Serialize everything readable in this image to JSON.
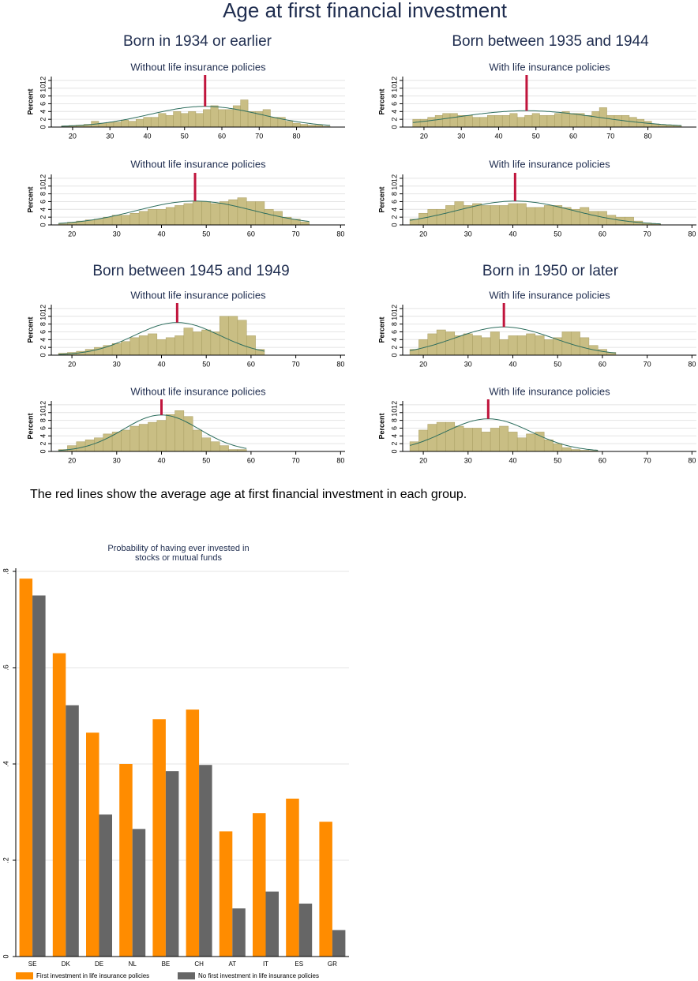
{
  "title": "Age at first financial investment",
  "groups": [
    "Born in 1934 or earlier",
    "Born between 1935 and 1944",
    "Born between 1945 and 1949",
    "Born in 1950 or later"
  ],
  "note": "The red lines show the average age at first financial investment in each group.",
  "chart_data": [
    {
      "type": "histogram",
      "title": "Without life insurance policies",
      "ylabel": "Percent",
      "color": "#c9be84",
      "mean_color": "#c0143c",
      "curve_color": "#2e6e5e",
      "bins": [
        17,
        19,
        21,
        23,
        25,
        27,
        29,
        31,
        33,
        35,
        37,
        39,
        41,
        43,
        45,
        47,
        49,
        51,
        53,
        55,
        57,
        59,
        61,
        63,
        65,
        67,
        69,
        71,
        73,
        75,
        77,
        79,
        81,
        83,
        85,
        87,
        89
      ],
      "values": [
        0.3,
        0.4,
        0.5,
        0.7,
        1.5,
        1,
        1.2,
        1.3,
        1.8,
        1.5,
        2,
        2.5,
        2.5,
        3.5,
        3,
        4,
        3.5,
        4,
        3.5,
        4.5,
        5.5,
        4.5,
        4.5,
        5.5,
        7,
        4,
        4,
        4.5,
        2.5,
        2.5,
        1.5,
        1,
        0.7,
        0.5,
        0.5,
        0.2
      ],
      "mean": 55.5,
      "sd": 15,
      "xlim": [
        14.3,
        93
      ],
      "ylim": [
        0,
        13
      ],
      "xticks": [
        20,
        30,
        40,
        50,
        60,
        70,
        80
      ],
      "yticks": [
        0,
        2,
        4,
        6,
        8,
        10,
        12
      ]
    },
    {
      "type": "histogram",
      "title": "With life insurance policies",
      "ylabel": "Percent",
      "color": "#c9be84",
      "mean_color": "#c0143c",
      "curve_color": "#2e6e5e",
      "bins": [
        17,
        19,
        21,
        23,
        25,
        27,
        29,
        31,
        33,
        35,
        37,
        39,
        41,
        43,
        45,
        47,
        49,
        51,
        53,
        55,
        57,
        59,
        61,
        63,
        65,
        67,
        69,
        71,
        73,
        75,
        77,
        79,
        81,
        83,
        85,
        87,
        89
      ],
      "values": [
        2,
        2,
        2.5,
        3,
        3.5,
        3.5,
        3,
        3,
        2.5,
        2.5,
        3,
        3,
        3,
        3.5,
        2.5,
        3,
        3.5,
        3,
        3,
        3.5,
        4,
        3.5,
        3.5,
        3,
        4,
        5,
        3,
        3,
        3,
        2.5,
        2,
        1.5,
        0.8,
        0.5,
        0.5,
        0.3
      ],
      "mean": 47.5,
      "sd": 19,
      "xlim": [
        14.3,
        93
      ],
      "ylim": [
        0,
        13
      ],
      "xticks": [
        20,
        30,
        40,
        50,
        60,
        70,
        80
      ],
      "yticks": [
        0,
        2,
        4,
        6,
        8,
        10,
        12
      ]
    },
    {
      "type": "histogram",
      "title": "Without life insurance policies",
      "ylabel": "Percent",
      "color": "#c9be84",
      "mean_color": "#c0143c",
      "curve_color": "#2e6e5e",
      "bins": [
        17,
        19,
        21,
        23,
        25,
        27,
        29,
        31,
        33,
        35,
        37,
        39,
        41,
        43,
        45,
        47,
        49,
        51,
        53,
        55,
        57,
        59,
        61,
        63,
        65,
        67,
        69,
        71,
        73
      ],
      "values": [
        0.3,
        0.7,
        1,
        1.3,
        1.5,
        2,
        2.5,
        2.5,
        3,
        3.5,
        4,
        4,
        4.5,
        5,
        5.5,
        6,
        6,
        5.5,
        6,
        6.5,
        7,
        6,
        6,
        4,
        3.5,
        2,
        1.5,
        0.8
      ],
      "mean": 47.5,
      "sd": 13,
      "xlim": [
        15.4,
        81
      ],
      "ylim": [
        0,
        13
      ],
      "xticks": [
        20,
        30,
        40,
        50,
        60,
        70,
        80
      ],
      "yticks": [
        0,
        2,
        4,
        6,
        8,
        10,
        12
      ]
    },
    {
      "type": "histogram",
      "title": "With life insurance policies",
      "ylabel": "Percent",
      "color": "#c9be84",
      "mean_color": "#c0143c",
      "curve_color": "#2e6e5e",
      "bins": [
        17,
        19,
        21,
        23,
        25,
        27,
        29,
        31,
        33,
        35,
        37,
        39,
        41,
        43,
        45,
        47,
        49,
        51,
        53,
        55,
        57,
        59,
        61,
        63,
        65,
        67,
        69,
        71,
        73
      ],
      "values": [
        1.5,
        3,
        4,
        4,
        5,
        6,
        5,
        5.5,
        5,
        5,
        5,
        5.5,
        5.5,
        4.5,
        4.5,
        5,
        5,
        4.5,
        4,
        4.5,
        3.5,
        3.5,
        2.5,
        2,
        2,
        1,
        0.5,
        0.3
      ],
      "mean": 40.5,
      "sd": 13,
      "xlim": [
        15.4,
        81
      ],
      "ylim": [
        0,
        13
      ],
      "xticks": [
        20,
        30,
        40,
        50,
        60,
        70,
        80
      ],
      "yticks": [
        0,
        2,
        4,
        6,
        8,
        10,
        12
      ]
    },
    {
      "type": "histogram",
      "title": "Without life insurance policies",
      "ylabel": "Percent",
      "color": "#c9be84",
      "mean_color": "#c0143c",
      "curve_color": "#2e6e5e",
      "bins": [
        17,
        19,
        21,
        23,
        25,
        27,
        29,
        31,
        33,
        35,
        37,
        39,
        41,
        43,
        45,
        47,
        49,
        51,
        53,
        55,
        57,
        59,
        61,
        63
      ],
      "values": [
        0.5,
        0.7,
        1,
        1.5,
        2,
        2.5,
        3,
        3.5,
        4.5,
        5,
        5.5,
        4,
        4.5,
        5,
        7,
        6,
        6.5,
        6,
        10,
        10,
        9,
        5,
        1.5
      ],
      "mean": 43.5,
      "sd": 9.5,
      "xlim": [
        15.4,
        81
      ],
      "ylim": [
        0,
        13
      ],
      "xticks": [
        20,
        30,
        40,
        50,
        60,
        70,
        80
      ],
      "yticks": [
        0,
        2,
        4,
        6,
        8,
        10,
        12
      ]
    },
    {
      "type": "histogram",
      "title": "With life insurance policies",
      "ylabel": "Percent",
      "color": "#c9be84",
      "mean_color": "#c0143c",
      "curve_color": "#2e6e5e",
      "bins": [
        17,
        19,
        21,
        23,
        25,
        27,
        29,
        31,
        33,
        35,
        37,
        39,
        41,
        43,
        45,
        47,
        49,
        51,
        53,
        55,
        57,
        59,
        61,
        63
      ],
      "values": [
        1.5,
        4,
        5.5,
        6.5,
        6,
        5,
        5.5,
        5,
        4.5,
        6,
        4,
        5,
        5,
        5.5,
        5,
        4,
        4.5,
        6,
        6,
        4.5,
        2.5,
        1.5,
        0.7
      ],
      "mean": 38,
      "sd": 11,
      "xlim": [
        15.4,
        81
      ],
      "ylim": [
        0,
        13
      ],
      "xticks": [
        20,
        30,
        40,
        50,
        60,
        70,
        80
      ],
      "yticks": [
        0,
        2,
        4,
        6,
        8,
        10,
        12
      ]
    },
    {
      "type": "histogram",
      "title": "Without life insurance policies",
      "ylabel": "Percent",
      "color": "#c9be84",
      "mean_color": "#c0143c",
      "curve_color": "#2e6e5e",
      "bins": [
        17,
        19,
        21,
        23,
        25,
        27,
        29,
        31,
        33,
        35,
        37,
        39,
        41,
        43,
        45,
        47,
        49,
        51,
        53,
        55,
        57,
        59
      ],
      "values": [
        0.5,
        1.5,
        2.5,
        3,
        3.5,
        4.5,
        5,
        5.5,
        6.5,
        7,
        7.5,
        8,
        9.5,
        10.5,
        9,
        5.5,
        3.5,
        2.5,
        1.5,
        0.5,
        0.5
      ],
      "mean": 40,
      "sd": 8.5,
      "xlim": [
        15.4,
        81
      ],
      "ylim": [
        0,
        13
      ],
      "xticks": [
        20,
        30,
        40,
        50,
        60,
        70,
        80
      ],
      "yticks": [
        0,
        2,
        4,
        6,
        8,
        10,
        12
      ]
    },
    {
      "type": "histogram",
      "title": "With life insurance policies",
      "ylabel": "Percent",
      "color": "#c9be84",
      "mean_color": "#c0143c",
      "curve_color": "#2e6e5e",
      "bins": [
        17,
        19,
        21,
        23,
        25,
        27,
        29,
        31,
        33,
        35,
        37,
        39,
        41,
        43,
        45,
        47,
        49,
        51,
        53,
        55,
        57,
        59
      ],
      "values": [
        2.5,
        5.5,
        7,
        7.5,
        7.5,
        6.5,
        6,
        6,
        5,
        6,
        6.5,
        5,
        3.5,
        4.5,
        5,
        3,
        2,
        1,
        0.5,
        0.3,
        0.2
      ],
      "mean": 34.5,
      "sd": 9.5,
      "xlim": [
        15.4,
        81
      ],
      "ylim": [
        0,
        13
      ],
      "xticks": [
        20,
        30,
        40,
        50,
        60,
        70,
        80
      ],
      "yticks": [
        0,
        2,
        4,
        6,
        8,
        10,
        12
      ]
    },
    {
      "type": "bar",
      "title": [
        "Probability of having ever invested in",
        "stocks or mutual funds"
      ],
      "categories": [
        "SE",
        "DK",
        "DE",
        "NL",
        "BE",
        "CH",
        "AT",
        "IT",
        "ES",
        "GR"
      ],
      "series": [
        {
          "name": "First investment in life insurance policies",
          "color": "#ff8c00",
          "values": [
            0.785,
            0.63,
            0.465,
            0.4,
            0.493,
            0.513,
            0.26,
            0.298,
            0.328,
            0.28
          ]
        },
        {
          "name": "No first investment in life insurance policies",
          "color": "#666666",
          "values": [
            0.75,
            0.522,
            0.295,
            0.265,
            0.385,
            0.398,
            0.1,
            0.135,
            0.11,
            0.055
          ]
        }
      ],
      "ylim": [
        0,
        0.8
      ],
      "yticks": [
        {
          "value": 0,
          "label": "0"
        },
        {
          "value": 0.2,
          "label": ".2"
        },
        {
          "value": 0.4,
          "label": ".4"
        },
        {
          "value": 0.6,
          "label": ".6"
        },
        {
          "value": 0.8,
          "label": ".8"
        }
      ],
      "grid": true
    }
  ]
}
